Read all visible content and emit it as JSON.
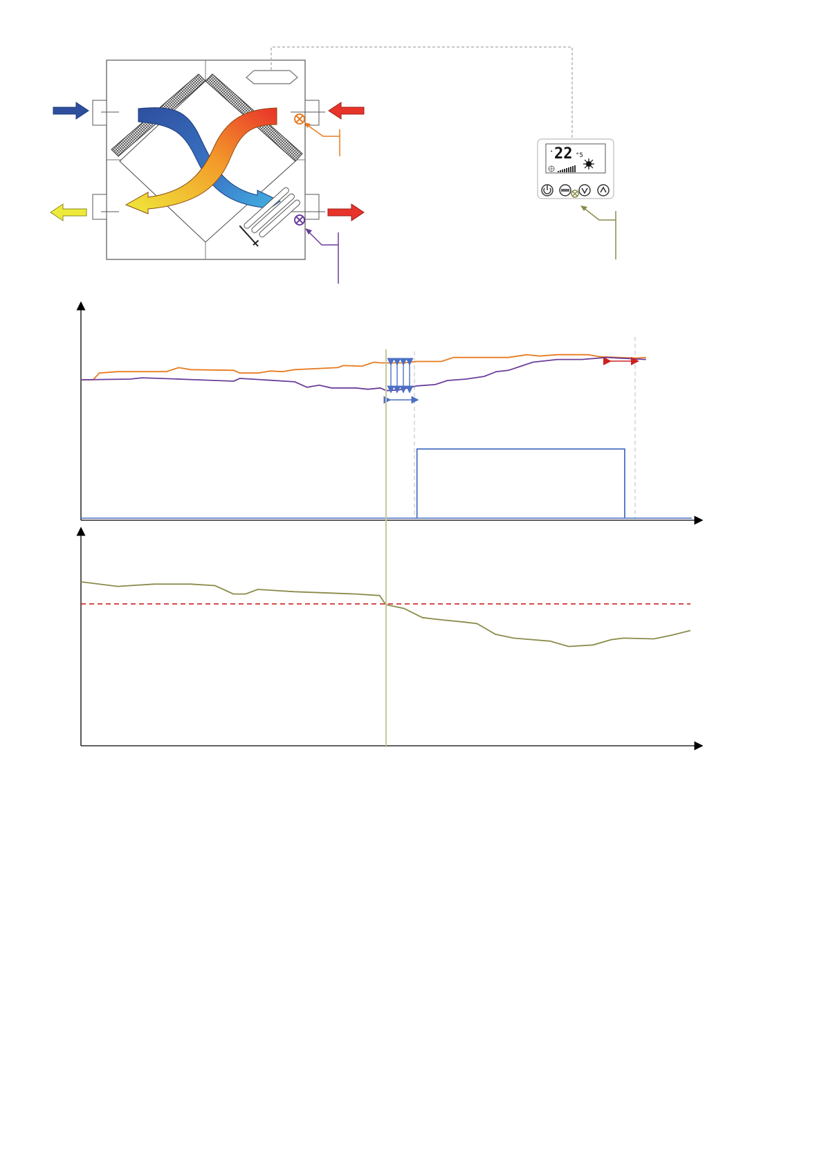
{
  "colors": {
    "outline": "#555555",
    "cold_air": "#2e4f9e",
    "cold_light": "#44b6e3",
    "hot_air": "#e8332a",
    "warm_mid": "#f39a2a",
    "exhaust": "#eeea3c",
    "sensor_supply": "#e87a1e",
    "sensor_heater": "#6a3d9a",
    "sensor_room": "#8a8a4a",
    "setpoint": "#cc2222",
    "heater_signal": "#4a6fc4",
    "marker": "#c8c89a",
    "dashed": "#a8a8a8"
  },
  "diagram": {
    "units": [
      "heat-recovery-unit",
      "supply-air-sensor",
      "heater-sensor",
      "electric-heater",
      "bypass-damper"
    ],
    "icons": [
      "arrow-right-icon",
      "arrow-left-icon",
      "sensor-icon",
      "heater-icon"
    ]
  },
  "controller": {
    "display_value": "22",
    "display_sub": "°5",
    "icons": [
      "power-icon",
      "mode-icon",
      "down-icon",
      "up-icon",
      "sun-icon",
      "fan-icon"
    ]
  },
  "chart_data": [
    {
      "type": "line",
      "title": "",
      "xlabel": "",
      "ylabel": "",
      "series": [
        {
          "color": "#e87a1e",
          "points": [
            [
              0,
              0
            ],
            [
              0.02,
              0
            ],
            [
              0.03,
              0.1
            ],
            [
              0.06,
              0.12
            ],
            [
              0.14,
              0.12
            ],
            [
              0.16,
              0.18
            ],
            [
              0.18,
              0.15
            ],
            [
              0.25,
              0.14
            ],
            [
              0.26,
              0.1
            ],
            [
              0.29,
              0.1
            ],
            [
              0.31,
              0.13
            ],
            [
              0.33,
              0.12
            ],
            [
              0.35,
              0.15
            ],
            [
              0.42,
              0.18
            ],
            [
              0.43,
              0.21
            ],
            [
              0.46,
              0.2
            ],
            [
              0.48,
              0.26
            ],
            [
              0.49,
              0.25
            ],
            [
              0.53,
              0.25
            ],
            [
              0.55,
              0.27
            ],
            [
              0.59,
              0.27
            ],
            [
              0.61,
              0.33
            ],
            [
              0.7,
              0.33
            ],
            [
              0.73,
              0.37
            ],
            [
              0.75,
              0.35
            ],
            [
              0.78,
              0.37
            ],
            [
              0.83,
              0.37
            ],
            [
              0.85,
              0.34
            ],
            [
              0.91,
              0.32
            ],
            [
              0.925,
              0.33
            ]
          ]
        },
        {
          "color": "#6a3d9a",
          "points": [
            [
              0,
              0
            ],
            [
              0.08,
              0.01
            ],
            [
              0.1,
              0.03
            ],
            [
              0.13,
              0.02
            ],
            [
              0.19,
              0
            ],
            [
              0.25,
              -0.02
            ],
            [
              0.26,
              0.02
            ],
            [
              0.28,
              0.01
            ],
            [
              0.35,
              -0.03
            ],
            [
              0.37,
              -0.11
            ],
            [
              0.39,
              -0.08
            ],
            [
              0.41,
              -0.12
            ],
            [
              0.45,
              -0.12
            ],
            [
              0.47,
              -0.14
            ],
            [
              0.49,
              -0.12
            ],
            [
              0.5,
              -0.16
            ],
            [
              0.52,
              -0.15
            ],
            [
              0.55,
              -0.09
            ],
            [
              0.58,
              -0.07
            ],
            [
              0.6,
              -0.01
            ],
            [
              0.63,
              0.01
            ],
            [
              0.66,
              0.05
            ],
            [
              0.68,
              0.12
            ],
            [
              0.7,
              0.14
            ],
            [
              0.72,
              0.2
            ],
            [
              0.74,
              0.26
            ],
            [
              0.78,
              0.3
            ],
            [
              0.82,
              0.3
            ],
            [
              0.86,
              0.33
            ],
            [
              0.925,
              0.3
            ]
          ]
        },
        {
          "color": "#4a6fc4",
          "points": [
            [
              0.55,
              1
            ],
            [
              0.89,
              1
            ]
          ],
          "level": 0.5
        }
      ]
    },
    {
      "type": "line",
      "title": "",
      "xlabel": "",
      "ylabel": "",
      "series": [
        {
          "color": "#8a8a4a",
          "points": [
            [
              0,
              0.9
            ],
            [
              0.06,
              0.84
            ],
            [
              0.12,
              0.87
            ],
            [
              0.18,
              0.87
            ],
            [
              0.22,
              0.85
            ],
            [
              0.25,
              0.74
            ],
            [
              0.27,
              0.74
            ],
            [
              0.29,
              0.8
            ],
            [
              0.35,
              0.77
            ],
            [
              0.45,
              0.74
            ],
            [
              0.49,
              0.72
            ],
            [
              0.5,
              0.6
            ],
            [
              0.53,
              0.55
            ],
            [
              0.56,
              0.43
            ],
            [
              0.58,
              0.41
            ],
            [
              0.63,
              0.37
            ],
            [
              0.65,
              0.35
            ],
            [
              0.68,
              0.21
            ],
            [
              0.71,
              0.16
            ],
            [
              0.77,
              0.12
            ],
            [
              0.8,
              0.05
            ],
            [
              0.84,
              0.07
            ],
            [
              0.87,
              0.14
            ],
            [
              0.89,
              0.16
            ],
            [
              0.94,
              0.15
            ],
            [
              0.97,
              0.2
            ],
            [
              1,
              0.26
            ]
          ]
        },
        {
          "color": "#cc2222",
          "style": "dashed",
          "points": [
            [
              0,
              0.61
            ],
            [
              1,
              0.61
            ]
          ]
        }
      ]
    }
  ]
}
